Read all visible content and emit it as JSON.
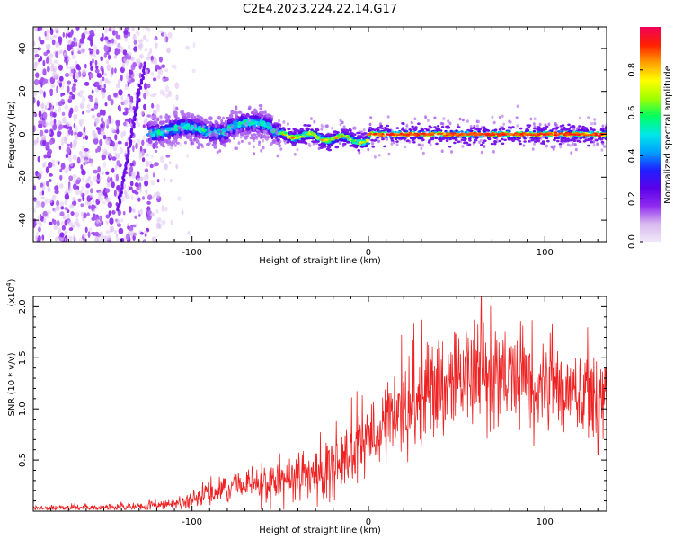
{
  "title": "C2E4.2023.224.22.14.G17",
  "chart_data": [
    {
      "type": "heatmap",
      "xlabel": "Height of straight line (km)",
      "ylabel": "Frequency (Hz)",
      "xlim": [
        -190,
        135
      ],
      "ylim": [
        -50,
        50
      ],
      "x_ticks": [
        "-100",
        "0",
        "100"
      ],
      "y_ticks": [
        "-40",
        "-20",
        "0",
        "20",
        "40"
      ],
      "x_tick_values": [
        -100,
        0,
        100
      ],
      "y_tick_values": [
        -40,
        -20,
        0,
        20,
        40
      ],
      "colorbar": {
        "label": "Normalized spectral amplitude",
        "range": [
          0,
          1
        ],
        "ticks": [
          "0.0",
          "0.2",
          "0.4",
          "0.6",
          "0.8"
        ],
        "tick_values": [
          0,
          0.2,
          0.4,
          0.6,
          0.8
        ],
        "colormap": [
          "#f0e8f8",
          "#d9b8f0",
          "#8f2bf0",
          "#5a00e8",
          "#2020ff",
          "#00a0ff",
          "#00e8e8",
          "#00ff60",
          "#a0ff00",
          "#ffff00",
          "#ffa000",
          "#ff2000",
          "#f0005a"
        ]
      },
      "features": {
        "noise_region_x": [
          -190,
          -110
        ],
        "chirp_line": {
          "x": [
            -142,
            -127
          ],
          "y": [
            -35,
            33
          ]
        },
        "dispersed_band": {
          "x": [
            -125,
            -50
          ],
          "center_y": 2,
          "half_width": 5,
          "amplitude": [
            0.3,
            0.5
          ]
        },
        "converging_band": {
          "x": [
            -50,
            0
          ],
          "center_y_start": 0,
          "center_y_end": -3,
          "amplitude": [
            0.6,
            0.9
          ]
        },
        "steady_band": {
          "x": [
            0,
            135
          ],
          "center_y": 0,
          "amplitude": [
            0.85,
            0.95
          ]
        }
      }
    },
    {
      "type": "line",
      "xlabel": "Height of straight line (km)",
      "ylabel": "SNR (10 * v/v)",
      "y_multiplier_base": "(x10",
      "y_multiplier_exp": "4",
      "y_multiplier_close": ")",
      "xlim": [
        -190,
        135
      ],
      "ylim": [
        0,
        21000
      ],
      "x_ticks": [
        "-100",
        "0",
        "100"
      ],
      "y_ticks": [
        "0.5",
        "1.0",
        "1.5",
        "2.0"
      ],
      "x_tick_values": [
        -100,
        0,
        100
      ],
      "y_tick_values": [
        5000,
        10000,
        15000,
        20000
      ],
      "color": "#ee2222",
      "series": [
        {
          "trend_x": [
            -190,
            -140,
            -110,
            -100,
            -90,
            -80,
            -70,
            -60,
            -50,
            -40,
            -30,
            -20,
            -10,
            0,
            10,
            20,
            30,
            40,
            50,
            60,
            70,
            80,
            90,
            100,
            110,
            120,
            135
          ],
          "trend_y": [
            300,
            400,
            700,
            1200,
            1800,
            2400,
            2700,
            2600,
            3000,
            3500,
            3800,
            4500,
            5500,
            7000,
            8800,
            10200,
            11500,
            12500,
            13000,
            13300,
            13400,
            13200,
            12800,
            12500,
            12000,
            11500,
            11000
          ],
          "amplitude_x": [
            -190,
            -110,
            -90,
            -60,
            -30,
            0,
            30,
            60,
            100,
            135
          ],
          "amplitude_y": [
            120,
            250,
            600,
            1000,
            1400,
            1900,
            2300,
            2500,
            2400,
            2300
          ]
        }
      ]
    }
  ]
}
